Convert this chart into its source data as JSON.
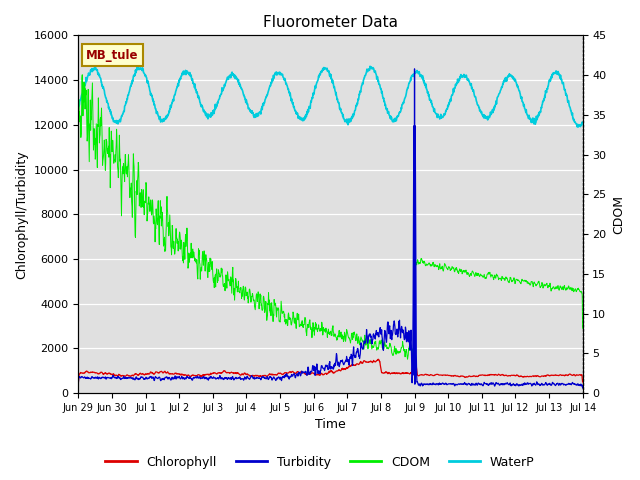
{
  "title": "Fluorometer Data",
  "xlabel": "Time",
  "ylabel_left": "Chlorophyll/Turbidity",
  "ylabel_right": "CDOM",
  "ylim_left": [
    0,
    16000
  ],
  "ylim_right": [
    0,
    45
  ],
  "annotation_text": "MB_tule",
  "annotation_box_color": "#ffffcc",
  "annotation_border_color": "#aa8800",
  "colors": {
    "chlorophyll": "#dd0000",
    "turbidity": "#0000cc",
    "cdom": "#00ee00",
    "waterp": "#00ccdd"
  },
  "legend_labels": [
    "Chlorophyll",
    "Turbidity",
    "CDOM",
    "WaterP"
  ],
  "x_tick_labels": [
    "Jun 29",
    "Jun 30",
    "Jul 1",
    "Jul 2",
    "Jul 3",
    "Jul 4",
    "Jul 5",
    "Jul 6",
    "Jul 7",
    "Jul 8",
    "Jul 9",
    "Jul 10",
    "Jul 11",
    "Jul 12",
    "Jul 13",
    "Jul 14"
  ],
  "background_color": "#e0e0e0",
  "grid_color": "#ffffff",
  "yticks_left": [
    0,
    2000,
    4000,
    6000,
    8000,
    10000,
    12000,
    14000,
    16000
  ],
  "yticks_right": [
    0,
    5,
    10,
    15,
    20,
    25,
    30,
    35,
    40,
    45
  ]
}
